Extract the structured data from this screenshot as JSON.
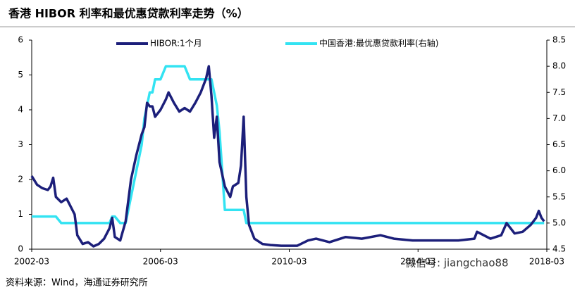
{
  "chart_data": {
    "type": "line",
    "title": "香港 HIBOR 利率和最优惠贷款利率走势（%）",
    "source": "资料来源：Wind，海通证券研究所",
    "watermark": "微信号: jiangchao88",
    "x": [
      "2002-03",
      "2002-05",
      "2002-07",
      "2002-09",
      "2002-10",
      "2002-11",
      "2002-12",
      "2003-02",
      "2003-04",
      "2003-05",
      "2003-07",
      "2003-08",
      "2003-10",
      "2003-12",
      "2004-02",
      "2004-04",
      "2004-06",
      "2004-08",
      "2004-09",
      "2004-10",
      "2004-12",
      "2005-02",
      "2005-04",
      "2005-06",
      "2005-08",
      "2005-09",
      "2005-10",
      "2005-11",
      "2005-12",
      "2006-01",
      "2006-03",
      "2006-05",
      "2006-06",
      "2006-08",
      "2006-10",
      "2006-12",
      "2007-02",
      "2007-04",
      "2007-06",
      "2007-08",
      "2007-09",
      "2007-10",
      "2007-11",
      "2007-12",
      "2008-01",
      "2008-03",
      "2008-05",
      "2008-06",
      "2008-08",
      "2008-09",
      "2008-10",
      "2008-11",
      "2008-12",
      "2009-02",
      "2009-05",
      "2009-08",
      "2009-12",
      "2010-06",
      "2010-10",
      "2011-01",
      "2011-06",
      "2011-12",
      "2012-06",
      "2013-01",
      "2013-06",
      "2014-01",
      "2014-06",
      "2015-01",
      "2015-06",
      "2015-12",
      "2016-01",
      "2016-06",
      "2016-10",
      "2016-12",
      "2017-03",
      "2017-06",
      "2017-09",
      "2017-11",
      "2017-12",
      "2018-01",
      "2018-02"
    ],
    "series": [
      {
        "name": "HIBOR:1个月",
        "color": "#1c1f7a",
        "values": [
          2.1,
          1.85,
          1.75,
          1.7,
          1.8,
          2.05,
          1.5,
          1.35,
          1.45,
          1.3,
          1.0,
          0.4,
          0.15,
          0.2,
          0.08,
          0.15,
          0.3,
          0.6,
          0.9,
          0.35,
          0.25,
          0.8,
          2.0,
          2.7,
          3.3,
          3.5,
          4.2,
          4.1,
          4.1,
          3.8,
          4.0,
          4.3,
          4.5,
          4.2,
          3.95,
          4.05,
          3.95,
          4.2,
          4.5,
          4.9,
          5.25,
          4.4,
          3.2,
          3.8,
          2.5,
          1.8,
          1.5,
          1.8,
          1.9,
          2.4,
          3.8,
          1.5,
          0.7,
          0.3,
          0.15,
          0.12,
          0.1,
          0.1,
          0.25,
          0.3,
          0.2,
          0.35,
          0.3,
          0.4,
          0.3,
          0.25,
          0.25,
          0.25,
          0.25,
          0.3,
          0.5,
          0.3,
          0.4,
          0.75,
          0.45,
          0.5,
          0.7,
          0.9,
          1.1,
          0.9,
          0.8
        ]
      },
      {
        "name": "中国香港:最优惠贷款利率(右轴)",
        "color": "#33e3f2",
        "axis": "y2",
        "values": [
          5.125,
          5.125,
          5.125,
          5.125,
          5.125,
          5.125,
          5.125,
          5.0,
          5.0,
          5.0,
          5.0,
          5.0,
          5.0,
          5.0,
          5.0,
          5.0,
          5.0,
          5.0,
          5.125,
          5.125,
          5.0,
          5.0,
          5.5,
          6.0,
          6.5,
          7.0,
          7.25,
          7.5,
          7.5,
          7.75,
          7.75,
          8.0,
          8.0,
          8.0,
          8.0,
          8.0,
          7.75,
          7.75,
          7.75,
          7.75,
          7.75,
          7.75,
          7.5,
          7.25,
          6.75,
          5.25,
          5.25,
          5.25,
          5.25,
          5.25,
          5.25,
          5.0,
          5.0,
          5.0,
          5.0,
          5.0,
          5.0,
          5.0,
          5.0,
          5.0,
          5.0,
          5.0,
          5.0,
          5.0,
          5.0,
          5.0,
          5.0,
          5.0,
          5.0,
          5.0,
          5.0,
          5.0,
          5.0,
          5.0,
          5.0,
          5.0,
          5.0,
          5.0,
          5.0,
          5.0,
          5.0
        ]
      }
    ],
    "xlim": [
      "2002-03",
      "2018-03"
    ],
    "xticks": [
      "2002-03",
      "2006-03",
      "2010-03",
      "2014-03",
      "2018-03"
    ],
    "ylim": [
      0,
      6
    ],
    "yticks": [
      0,
      1,
      2,
      3,
      4,
      5,
      6
    ],
    "y2lim": [
      4.5,
      8.5
    ],
    "y2ticks": [
      {
        "value": 4.5,
        "label": "4.5"
      },
      {
        "value": 5,
        "label": "5.0"
      },
      {
        "value": 5.5,
        "label": "5.5"
      },
      {
        "value": 6,
        "label": "6.0"
      },
      {
        "value": 6.5,
        "label": "6.5"
      },
      {
        "value": 7,
        "label": "7.0"
      },
      {
        "value": 7.5,
        "label": "7.5"
      },
      {
        "value": 8,
        "label": "8.0"
      },
      {
        "value": 8.5,
        "label": "8.5"
      }
    ],
    "legend": "top"
  }
}
